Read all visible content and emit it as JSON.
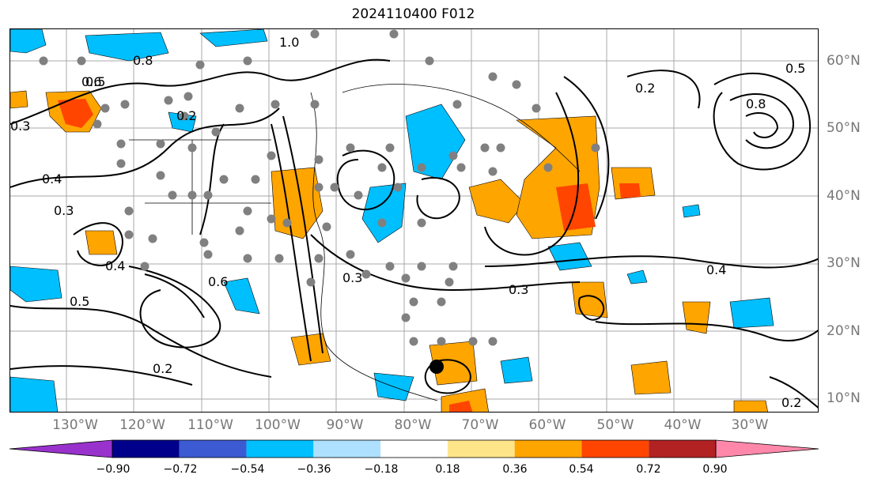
{
  "title": "2024110400 F012",
  "lon_labels": [
    "130°W",
    "120°W",
    "110°W",
    "100°W",
    "90°W",
    "80°W",
    "70°W",
    "60°W",
    "50°W",
    "40°W",
    "30°W"
  ],
  "lat_labels": [
    "60°N",
    "50°N",
    "40°N",
    "30°N",
    "20°N",
    "10°N"
  ],
  "colorbar": {
    "labels": [
      "−0.90",
      "−0.72",
      "−0.54",
      "−0.36",
      "−0.18",
      "0.18",
      "0.36",
      "0.54",
      "0.72",
      "0.90"
    ],
    "colors": [
      "#9932cc",
      "#00008b",
      "#3c5ad2",
      "#00bfff",
      "#aee0ff",
      "#ffffff",
      "#ffe58a",
      "#ffa500",
      "#ff4500",
      "#b22222",
      "#ff88aa"
    ]
  },
  "contour_labels": [
    "1.0",
    "0.8",
    "0.6",
    "0.5",
    "0.3",
    "0.4",
    "0.2",
    "0.5",
    "0.3",
    "0.4",
    "0.6",
    "0.2",
    "0.3",
    "0.4",
    "0.2",
    "0.3",
    "0.8",
    "0.5",
    "0.2"
  ],
  "fill_colors": {
    "neg_light": "#00bfff",
    "pos_orange": "#ffa500",
    "pos_red": "#ff4500"
  },
  "marker": "storm-center-marker"
}
